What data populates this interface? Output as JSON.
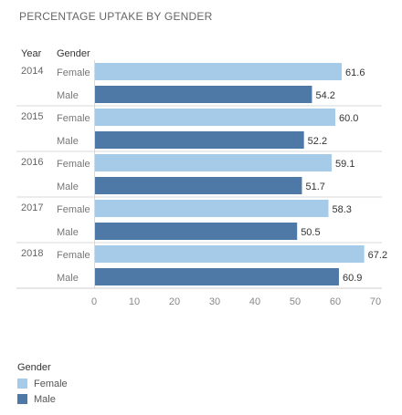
{
  "chart_data": {
    "type": "bar",
    "orientation": "horizontal",
    "title": "PERCENTAGE UPTAKE BY  GENDER",
    "row_headers": [
      "Year",
      "Gender"
    ],
    "categories": [
      "2014",
      "2015",
      "2016",
      "2017",
      "2018"
    ],
    "series": [
      {
        "name": "Female",
        "color": "#a6cbe8",
        "values": [
          61.6,
          60.0,
          59.1,
          58.3,
          67.2
        ]
      },
      {
        "name": "Male",
        "color": "#4e79a7",
        "values": [
          54.2,
          52.2,
          51.7,
          50.5,
          60.9
        ]
      }
    ],
    "xlim": [
      0,
      70
    ],
    "xticks": [
      0,
      10,
      20,
      30,
      40,
      50,
      60,
      70
    ],
    "value_decimals": 1,
    "legend": {
      "title": "Gender",
      "position": "bottom-left"
    },
    "grid": false
  }
}
